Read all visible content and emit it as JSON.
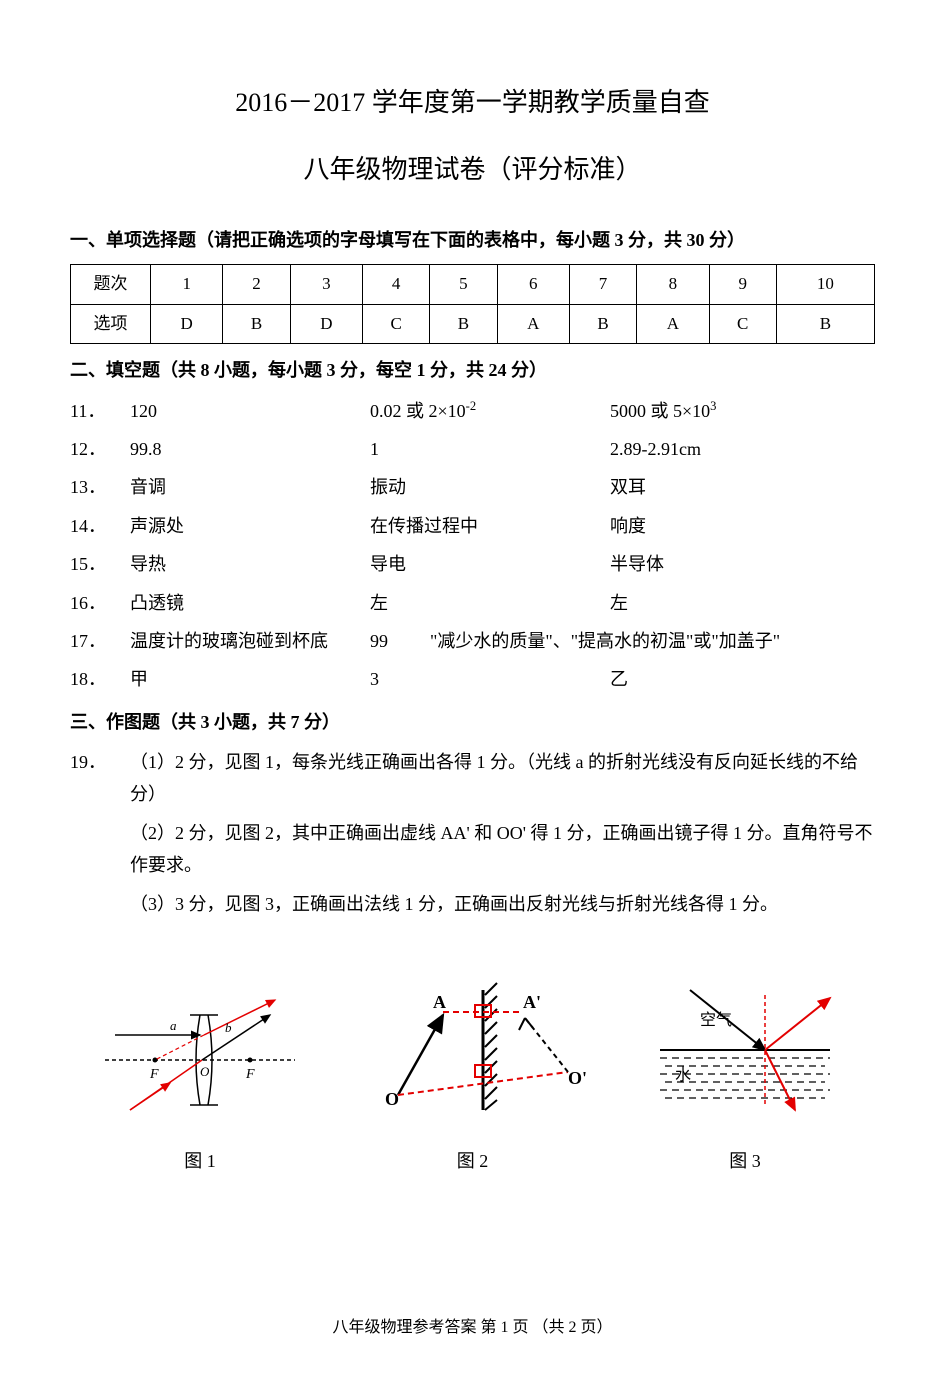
{
  "title_line1": "2016－2017 学年度第一学期教学质量自查",
  "title_line2": "八年级物理试卷（评分标准）",
  "section1": {
    "heading": "一、单项选择题（请把正确选项的字母填写在下面的表格中，每小题 3 分，共 30 分）",
    "row_label1": "题次",
    "row_label2": "选项",
    "numbers": [
      "1",
      "2",
      "3",
      "4",
      "5",
      "6",
      "7",
      "8",
      "9",
      "10"
    ],
    "answers": [
      "D",
      "B",
      "D",
      "C",
      "B",
      "A",
      "B",
      "A",
      "C",
      "B"
    ]
  },
  "section2": {
    "heading": "二、填空题（共 8 小题，每小题 3 分，每空 1 分，共 24 分）",
    "items": [
      {
        "num": "11．",
        "a1": "120",
        "a2_html": "0.02 或 2×10<sup>-2</sup>",
        "a3_html": "5000 或 5×10<sup>3</sup>"
      },
      {
        "num": "12．",
        "a1": "99.8",
        "a2": "1",
        "a3": "2.89-2.91cm"
      },
      {
        "num": "13．",
        "a1": "音调",
        "a2": "振动",
        "a3": "双耳"
      },
      {
        "num": "14．",
        "a1": "声源处",
        "a2": "在传播过程中",
        "a3": "响度"
      },
      {
        "num": "15．",
        "a1": "导热",
        "a2": "导电",
        "a3": "半导体"
      },
      {
        "num": "16．",
        "a1": "凸透镜",
        "a2": "左",
        "a3": "左"
      },
      {
        "num": "17．",
        "a1": "温度计的玻璃泡碰到杯底",
        "a2": "99",
        "a3": "\"减少水的质量\"、\"提高水的初温\"或\"加盖子\""
      },
      {
        "num": "18．",
        "a1": "甲",
        "a2": "3",
        "a3": "乙"
      }
    ]
  },
  "section3": {
    "heading": "三、作图题（共 3 小题，共 7 分）",
    "q19_num": "19．",
    "items": [
      "（1）2 分，见图 1，每条光线正确画出各得 1 分。（光线 a 的折射光线没有反向延长线的不给分）",
      "（2）2 分，见图 2，其中正确画出虚线 AA' 和 OO' 得 1 分，正确画出镜子得 1 分。直角符号不作要求。",
      "（3）3 分，见图 3，正确画出法线 1 分，正确画出反射光线与折射光线各得 1 分。"
    ],
    "captions": [
      "图 1",
      "图 2",
      "图 3"
    ]
  },
  "figures": {
    "fig1": {
      "labels": {
        "a": "a",
        "b": "b",
        "F_left": "F",
        "O": "O",
        "F_right": "F"
      },
      "colors": {
        "red": "#e30000",
        "black": "#000000"
      },
      "stroke_width": 1.5,
      "dash": "4,3"
    },
    "fig2": {
      "labels": {
        "A": "A",
        "A_prime": "A'",
        "O": "O",
        "O_prime": "O'"
      },
      "colors": {
        "red": "#e30000",
        "black": "#000000"
      },
      "stroke_width": 2,
      "hatch_width": 3,
      "dash": "6,4"
    },
    "fig3": {
      "labels": {
        "air": "空气",
        "water": "水"
      },
      "colors": {
        "red": "#e30000",
        "black": "#000000",
        "water_line": "#000000"
      },
      "stroke_width": 1.5,
      "dash": "4,3"
    }
  },
  "footer": "八年级物理参考答案    第 1 页   （共 2 页）"
}
